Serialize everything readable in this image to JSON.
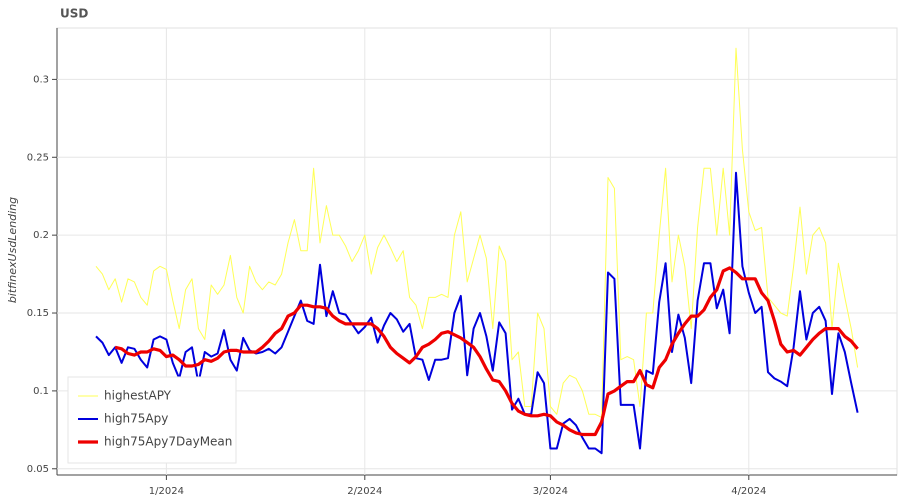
{
  "chart_data": {
    "type": "line",
    "title": "USD",
    "y_label": "bitfinexUsdLending",
    "categories": [
      null,
      null,
      null,
      null,
      null,
      null,
      null,
      null,
      null,
      null,
      null,
      "1/2024",
      null,
      null,
      null,
      null,
      null,
      null,
      null,
      null,
      null,
      null,
      null,
      null,
      null,
      null,
      null,
      null,
      null,
      null,
      null,
      null,
      null,
      null,
      null,
      null,
      null,
      null,
      null,
      null,
      null,
      null,
      "2/2024",
      null,
      null,
      null,
      null,
      null,
      null,
      null,
      null,
      null,
      null,
      null,
      null,
      null,
      null,
      null,
      null,
      null,
      null,
      null,
      null,
      null,
      null,
      null,
      null,
      null,
      null,
      null,
      null,
      "3/2024",
      null,
      null,
      null,
      null,
      null,
      null,
      null,
      null,
      null,
      null,
      null,
      null,
      null,
      null,
      null,
      null,
      null,
      null,
      null,
      null,
      null,
      null,
      null,
      null,
      null,
      null,
      null,
      null,
      null,
      null,
      "4/2024",
      null,
      null,
      null,
      null,
      null,
      null,
      null,
      null,
      null,
      null,
      null,
      null,
      null,
      null,
      null,
      null,
      null
    ],
    "series": [
      {
        "name": "highestAPY",
        "color": "#ffff55",
        "values": [
          0.18,
          0.175,
          0.165,
          0.172,
          0.157,
          0.172,
          0.17,
          0.16,
          0.155,
          0.177,
          0.18,
          0.178,
          0.158,
          0.14,
          0.165,
          0.172,
          0.14,
          0.133,
          0.168,
          0.162,
          0.168,
          0.187,
          0.16,
          0.15,
          0.18,
          0.17,
          0.165,
          0.17,
          0.168,
          0.175,
          0.195,
          0.21,
          0.19,
          0.19,
          0.243,
          0.195,
          0.219,
          0.2,
          0.2,
          0.193,
          0.183,
          0.19,
          0.2,
          0.175,
          0.192,
          0.2,
          0.192,
          0.183,
          0.19,
          0.16,
          0.155,
          0.14,
          0.16,
          0.16,
          0.162,
          0.16,
          0.2,
          0.215,
          0.17,
          0.185,
          0.2,
          0.185,
          0.14,
          0.193,
          0.183,
          0.12,
          0.125,
          0.09,
          0.09,
          0.15,
          0.14,
          0.09,
          0.085,
          0.105,
          0.11,
          0.108,
          0.1,
          0.085,
          0.085,
          0.083,
          0.237,
          0.23,
          0.12,
          0.122,
          0.12,
          0.09,
          0.15,
          0.15,
          0.2,
          0.243,
          0.17,
          0.2,
          0.18,
          0.14,
          0.205,
          0.243,
          0.243,
          0.2,
          0.243,
          0.2,
          0.32,
          0.255,
          0.215,
          0.203,
          0.205,
          0.16,
          0.155,
          0.15,
          0.148,
          0.18,
          0.218,
          0.175,
          0.2,
          0.205,
          0.195,
          0.14,
          0.182,
          0.16,
          0.14,
          0.115
        ]
      },
      {
        "name": "high75Apy",
        "color": "#0000dd",
        "values": [
          0.135,
          0.131,
          0.123,
          0.128,
          0.118,
          0.128,
          0.127,
          0.12,
          0.115,
          0.133,
          0.135,
          0.133,
          0.118,
          0.108,
          0.125,
          0.128,
          0.105,
          0.125,
          0.122,
          0.124,
          0.139,
          0.12,
          0.113,
          0.134,
          0.126,
          0.124,
          0.125,
          0.127,
          0.124,
          0.128,
          0.138,
          0.148,
          0.158,
          0.145,
          0.143,
          0.181,
          0.148,
          0.164,
          0.15,
          0.149,
          0.143,
          0.137,
          0.141,
          0.147,
          0.131,
          0.142,
          0.15,
          0.146,
          0.138,
          0.143,
          0.121,
          0.12,
          0.107,
          0.12,
          0.12,
          0.121,
          0.15,
          0.161,
          0.11,
          0.14,
          0.15,
          0.135,
          0.113,
          0.144,
          0.137,
          0.088,
          0.095,
          0.085,
          0.085,
          0.112,
          0.105,
          0.063,
          0.063,
          0.079,
          0.082,
          0.078,
          0.07,
          0.063,
          0.063,
          0.06,
          0.176,
          0.172,
          0.091,
          0.091,
          0.091,
          0.063,
          0.113,
          0.111,
          0.157,
          0.182,
          0.125,
          0.149,
          0.134,
          0.105,
          0.158,
          0.182,
          0.182,
          0.153,
          0.165,
          0.137,
          0.24,
          0.18,
          0.163,
          0.15,
          0.154,
          0.112,
          0.108,
          0.106,
          0.103,
          0.128,
          0.164,
          0.133,
          0.15,
          0.154,
          0.145,
          0.098,
          0.137,
          0.125,
          0.105,
          0.086
        ]
      },
      {
        "name": "high75Apy7DayMean",
        "color": "#ee0000",
        "values": [
          null,
          null,
          null,
          0.128,
          0.127,
          0.124,
          0.123,
          0.125,
          0.125,
          0.127,
          0.126,
          0.122,
          0.123,
          0.12,
          0.116,
          0.116,
          0.117,
          0.12,
          0.119,
          0.121,
          0.125,
          0.126,
          0.126,
          0.125,
          0.125,
          0.125,
          0.128,
          0.132,
          0.137,
          0.14,
          0.148,
          0.15,
          0.155,
          0.155,
          0.154,
          0.154,
          0.153,
          0.148,
          0.145,
          0.143,
          0.143,
          0.143,
          0.143,
          0.143,
          0.14,
          0.135,
          0.128,
          0.124,
          0.121,
          0.118,
          0.122,
          0.128,
          0.13,
          0.133,
          0.137,
          0.138,
          0.136,
          0.134,
          0.131,
          0.128,
          0.122,
          0.114,
          0.107,
          0.106,
          0.1,
          0.092,
          0.087,
          0.085,
          0.084,
          0.084,
          0.085,
          0.084,
          0.08,
          0.078,
          0.075,
          0.073,
          0.072,
          0.072,
          0.072,
          0.08,
          0.098,
          0.1,
          0.103,
          0.106,
          0.106,
          0.113,
          0.104,
          0.102,
          0.115,
          0.12,
          0.13,
          0.137,
          0.143,
          0.148,
          0.148,
          0.152,
          0.16,
          0.165,
          0.177,
          0.179,
          0.176,
          0.172,
          0.172,
          0.172,
          0.163,
          0.158,
          0.145,
          0.13,
          0.125,
          0.126,
          0.123,
          0.128,
          0.133,
          0.137,
          0.14,
          0.14,
          0.14,
          0.135,
          0.132,
          0.127
        ]
      }
    ],
    "ylim": [
      0.046,
      0.333
    ],
    "yticks": [
      0.05,
      0.1,
      0.15,
      0.2,
      0.25,
      0.3
    ],
    "grid": true,
    "legend": "bottom-left"
  }
}
